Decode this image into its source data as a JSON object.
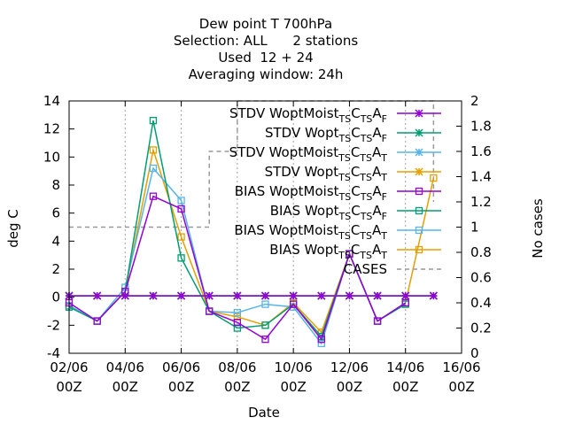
{
  "chart_data": {
    "type": "line",
    "title_lines": [
      "Dew point T 700hPa",
      "Selection: ALL      2 stations",
      "Used  12 + 24",
      "Averaging window: 24h"
    ],
    "xlabel": "Date",
    "ylabel": "deg C",
    "y2label": "No cases",
    "xlim": [
      0,
      14
    ],
    "ylim": [
      -4,
      14
    ],
    "y2lim": [
      0,
      2
    ],
    "x_ticks": [
      {
        "x": 0,
        "l1": "02/06",
        "l2": "00Z"
      },
      {
        "x": 2,
        "l1": "04/06",
        "l2": "00Z"
      },
      {
        "x": 4,
        "l1": "06/06",
        "l2": "00Z"
      },
      {
        "x": 6,
        "l1": "08/06",
        "l2": "00Z"
      },
      {
        "x": 8,
        "l1": "10/06",
        "l2": "00Z"
      },
      {
        "x": 10,
        "l1": "12/06",
        "l2": "00Z"
      },
      {
        "x": 12,
        "l1": "14/06",
        "l2": "00Z"
      },
      {
        "x": 14,
        "l1": "16/06",
        "l2": "00Z"
      }
    ],
    "y_ticks": [
      -4,
      -2,
      0,
      2,
      4,
      6,
      8,
      10,
      12,
      14
    ],
    "y2_ticks": [
      0,
      0.2,
      0.4,
      0.6,
      0.8,
      1,
      1.2,
      1.4,
      1.6,
      1.8,
      2
    ],
    "grid": "dashed vertical at x ticks",
    "legend_placement": "top-right",
    "series": [
      {
        "name": "STDV WoptMoist",
        "sub1": "TS",
        "sub2": "TS",
        "sub3": "F",
        "color": "#9400d3",
        "marker": "x",
        "x": [
          0,
          1,
          2,
          3,
          4,
          5,
          6,
          7,
          8,
          9,
          10,
          11,
          12,
          13
        ],
        "y": [
          0.1,
          0.1,
          0.1,
          0.1,
          0.1,
          0.1,
          0.1,
          0.1,
          0.1,
          0.1,
          0.1,
          0.1,
          0.1,
          0.1
        ]
      },
      {
        "name": "STDV Wopt",
        "sub1": "TS",
        "sub2": "TS",
        "sub3": "F",
        "color": "#009e73",
        "marker": "x",
        "x": [
          0,
          1,
          2,
          3,
          4,
          5,
          6,
          7,
          8,
          9,
          10,
          11,
          12,
          13
        ],
        "y": [
          0.1,
          0.1,
          0.1,
          0.1,
          0.1,
          0.1,
          0.1,
          0.1,
          0.1,
          0.1,
          0.1,
          0.1,
          0.1,
          0.1
        ]
      },
      {
        "name": "STDV WoptMoist",
        "sub1": "TS",
        "sub2": "TS",
        "sub3": "T",
        "color": "#56b4e9",
        "marker": "x",
        "x": [
          0,
          1,
          2,
          3,
          4,
          5,
          6,
          7,
          8,
          9,
          10,
          11,
          12,
          13
        ],
        "y": [
          0.1,
          0.1,
          0.1,
          0.1,
          0.1,
          0.1,
          0.1,
          0.1,
          0.1,
          0.1,
          0.1,
          0.1,
          0.1,
          0.1
        ]
      },
      {
        "name": "STDV Wopt",
        "sub1": "TS",
        "sub2": "TS",
        "sub3": "T",
        "color": "#e69f00",
        "marker": "x",
        "x": [
          0,
          1,
          2,
          3,
          4,
          5,
          6,
          7,
          8,
          9,
          10,
          11,
          12,
          13
        ],
        "y": [
          0.1,
          0.1,
          0.1,
          0.1,
          0.1,
          0.1,
          0.1,
          0.1,
          0.1,
          0.1,
          0.1,
          0.1,
          0.1,
          0.1
        ]
      },
      {
        "name": "BIAS WoptMoist",
        "sub1": "TS",
        "sub2": "TS",
        "sub3": "F",
        "color": "#9400d3",
        "marker": "square",
        "x": [
          0,
          1,
          2,
          3,
          4,
          5,
          6,
          7,
          8,
          9,
          10,
          11,
          12
        ],
        "y": [
          -0.4,
          -1.7,
          0.4,
          7.2,
          6.3,
          -1.0,
          -1.8,
          -3.0,
          -0.5,
          -3.0,
          3.1,
          -1.7,
          -0.4
        ]
      },
      {
        "name": "BIAS Wopt",
        "sub1": "TS",
        "sub2": "TS",
        "sub3": "F",
        "color": "#009e73",
        "marker": "square",
        "x": [
          0,
          1,
          2,
          3,
          4,
          5,
          6,
          7,
          8,
          9,
          10,
          11,
          12
        ],
        "y": [
          -0.7,
          -1.7,
          0.4,
          12.6,
          2.8,
          -1.0,
          -2.2,
          -2.0,
          -0.5,
          -2.8,
          3.1,
          -1.7,
          -0.5
        ]
      },
      {
        "name": "BIAS WoptMoist",
        "sub1": "TS",
        "sub2": "TS",
        "sub3": "T",
        "color": "#56b4e9",
        "marker": "square",
        "x": [
          0,
          1,
          2,
          3,
          4,
          5,
          6,
          7,
          8,
          9,
          10,
          11,
          12
        ],
        "y": [
          -0.6,
          -1.7,
          0.7,
          9.2,
          6.9,
          -1.0,
          -1.1,
          -0.5,
          -0.7,
          -3.3,
          3.1,
          -1.7,
          -0.4
        ]
      },
      {
        "name": "BIAS Wopt",
        "sub1": "TS",
        "sub2": "TS",
        "sub3": "T",
        "color": "#e69f00",
        "marker": "square",
        "x": [
          0,
          1,
          2,
          3,
          4,
          5,
          6,
          7,
          8,
          9,
          10,
          11,
          12,
          13
        ],
        "y": [
          -0.6,
          -1.7,
          0.4,
          10.5,
          4.3,
          -1.0,
          -1.4,
          -2.0,
          -0.4,
          -2.5,
          3.1,
          -1.7,
          -0.4,
          8.5
        ]
      },
      {
        "name": "CASES",
        "color": "#999999",
        "dash": true,
        "axis": "y2",
        "x": [
          0,
          5,
          5,
          6,
          6,
          8,
          8,
          13,
          13
        ],
        "y": [
          1,
          1,
          1.6,
          1.6,
          2,
          2,
          2,
          2,
          1.2
        ]
      }
    ]
  }
}
